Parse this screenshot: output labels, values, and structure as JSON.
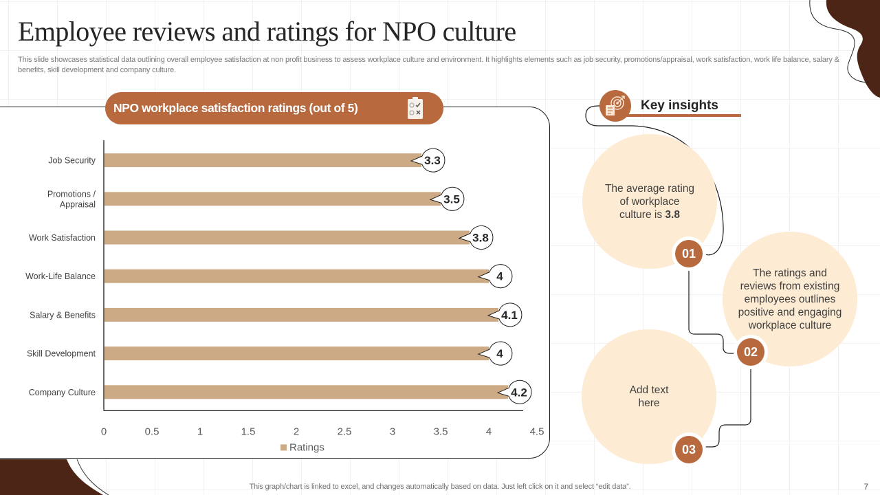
{
  "header": {
    "title": "Employee reviews and ratings for NPO culture",
    "subtitle": "This slide showcases statistical data outlining overall employee satisfaction at non profit business to assess workplace culture and environment. It highlights elements such as job security, promotions/appraisal, work satisfaction, work life balance, salary &  benefits, skill development and company culture."
  },
  "chart_panel": {
    "heading": "NPO workplace satisfaction ratings (out of 5)",
    "heading_icon": "clipboard-checklist-icon"
  },
  "chart_data": {
    "type": "bar",
    "orientation": "horizontal",
    "title": "NPO workplace satisfaction ratings (out of 5)",
    "categories": [
      "Job Security",
      "Promotions / Appraisal",
      "Work Satisfaction",
      "Work-Life Balance",
      "Salary & Benefits",
      "Skill Development",
      "Company Culture"
    ],
    "category_lines": [
      [
        "Job Security"
      ],
      [
        "Promotions /",
        "Appraisal"
      ],
      [
        "Work Satisfaction"
      ],
      [
        "Work-Life Balance"
      ],
      [
        "Salary & Benefits"
      ],
      [
        "Skill Development"
      ],
      [
        "Company Culture"
      ]
    ],
    "series": [
      {
        "name": "Ratings",
        "values": [
          3.3,
          3.5,
          3.8,
          4,
          4.1,
          4,
          4.2
        ],
        "color": "#cdaa86"
      }
    ],
    "data_labels": [
      "3.3",
      "3.5",
      "3.8",
      "4",
      "4.1",
      "4",
      "4.2"
    ],
    "xlabel": "",
    "ylabel": "",
    "xlim": [
      0,
      4.5
    ],
    "x_ticks": [
      "0",
      "0.5",
      "1",
      "1.5",
      "2",
      "2.5",
      "3",
      "3.5",
      "4",
      "4.5"
    ],
    "grid": false,
    "legend": {
      "position": "bottom",
      "entries": [
        "Ratings"
      ]
    }
  },
  "insights": {
    "title": "Key insights",
    "icon": "target-checklist-icon",
    "items": [
      {
        "number": "01",
        "text_before": "The average rating of workplace culture is ",
        "text_bold": "3.8"
      },
      {
        "number": "02",
        "text": "The ratings and reviews from existing employees outlines positive and engaging workplace culture"
      },
      {
        "number": "03",
        "text": "Add text here"
      }
    ]
  },
  "footer": {
    "note": "This graph/chart is linked to excel,  and changes automatically based on data. Just left click on it and select “edit data”.",
    "page_number": "7"
  },
  "colors": {
    "accent": "#b8693d",
    "bar": "#cdaa86",
    "insight_bg": "#fdebd3",
    "decor_dark": "#4d2516"
  }
}
